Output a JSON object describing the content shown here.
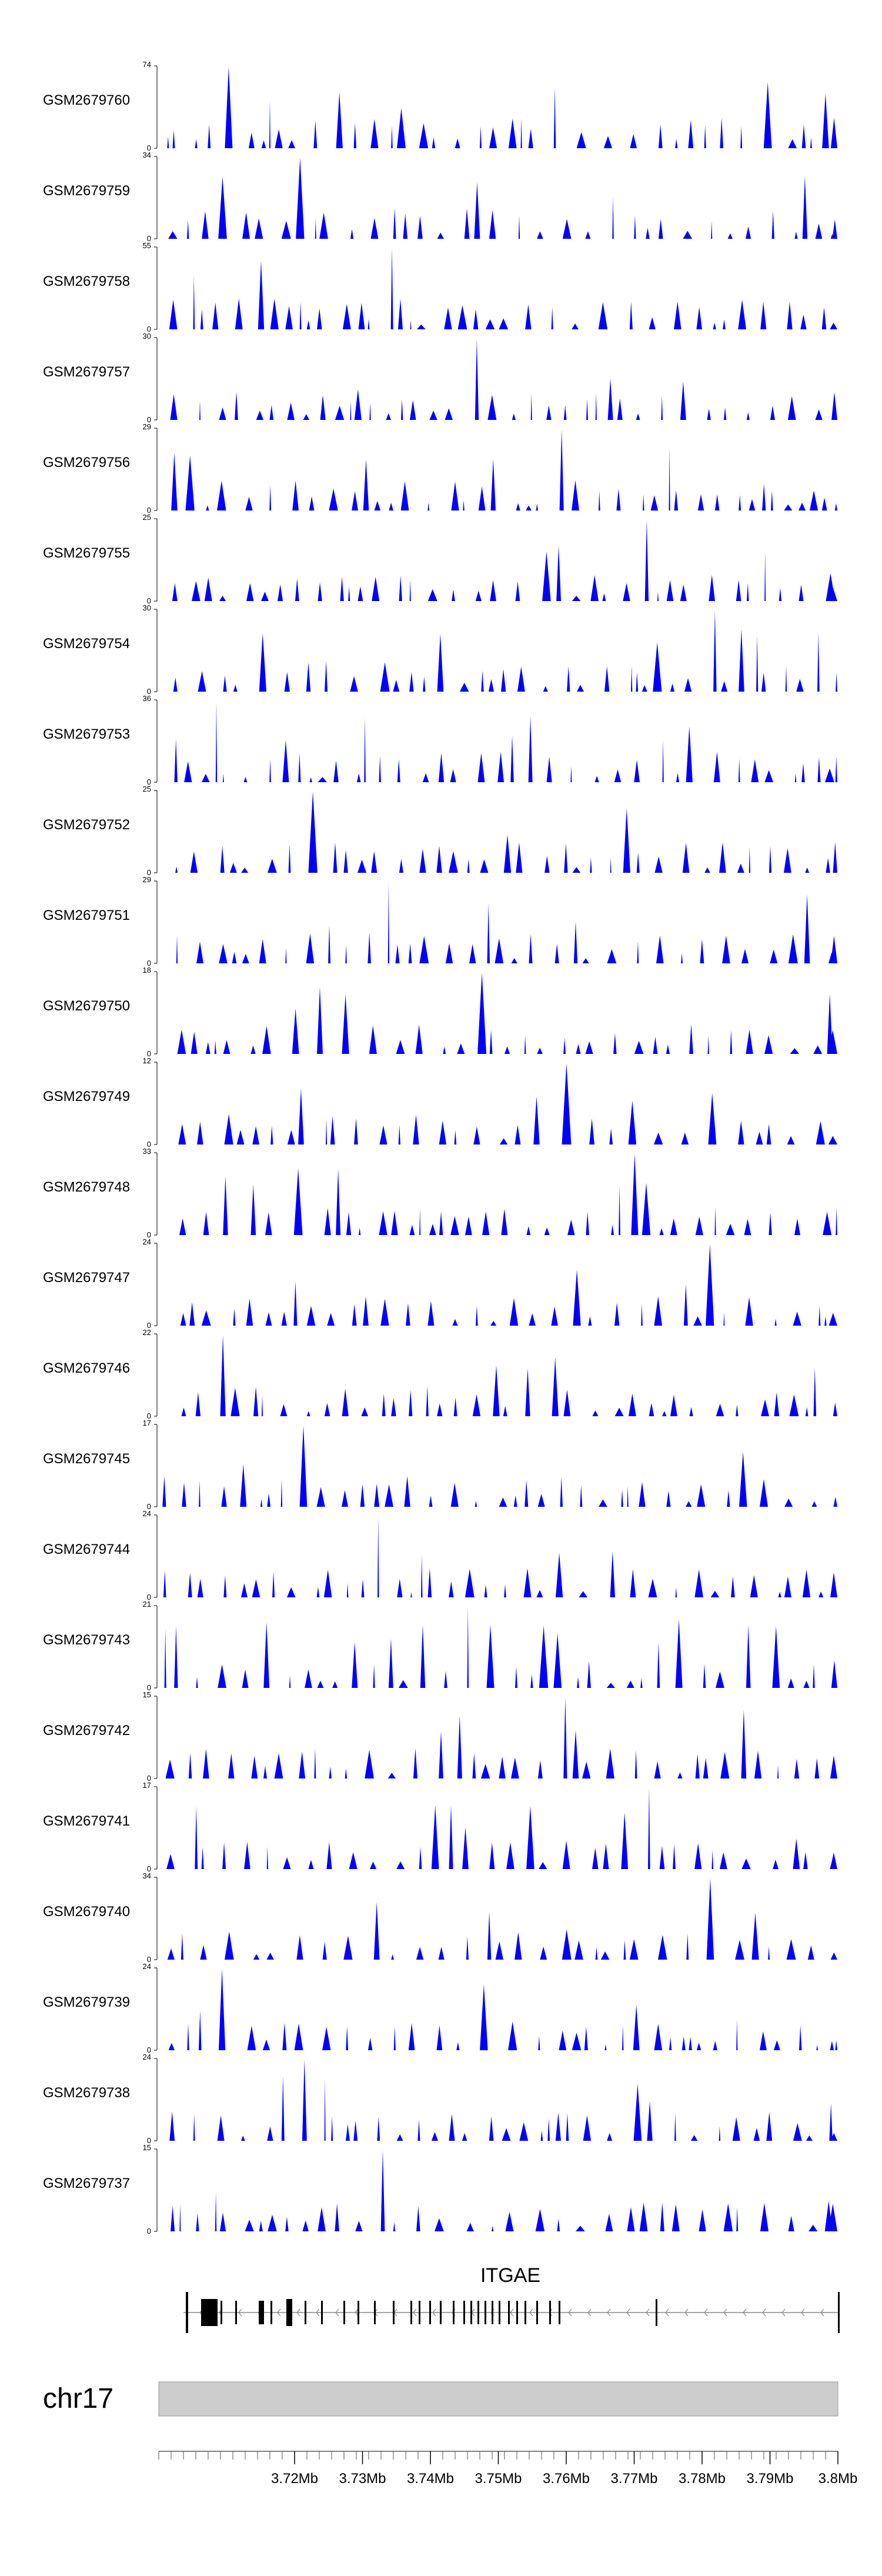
{
  "chart_data": {
    "type": "area",
    "chromosome": "chr17",
    "gene": "ITGAE",
    "x_range_mb": [
      3.7,
      3.8
    ],
    "x_tick_labels": [
      "3.72Mb",
      "3.73Mb",
      "3.74Mb",
      "3.75Mb",
      "3.76Mb",
      "3.77Mb",
      "3.78Mb",
      "3.79Mb",
      "3.8Mb"
    ],
    "x_tick_values": [
      3.72,
      3.73,
      3.74,
      3.75,
      3.76,
      3.77,
      3.78,
      3.79,
      3.8
    ],
    "fill_color": "#0000ff",
    "ideogram_color": "#cccccc",
    "series": [
      {
        "name": "GSM2679760",
        "ymax": 74
      },
      {
        "name": "GSM2679759",
        "ymax": 34
      },
      {
        "name": "GSM2679758",
        "ymax": 55
      },
      {
        "name": "GSM2679757",
        "ymax": 30
      },
      {
        "name": "GSM2679756",
        "ymax": 29
      },
      {
        "name": "GSM2679755",
        "ymax": 25
      },
      {
        "name": "GSM2679754",
        "ymax": 30
      },
      {
        "name": "GSM2679753",
        "ymax": 36
      },
      {
        "name": "GSM2679752",
        "ymax": 25
      },
      {
        "name": "GSM2679751",
        "ymax": 29
      },
      {
        "name": "GSM2679750",
        "ymax": 18
      },
      {
        "name": "GSM2679749",
        "ymax": 12
      },
      {
        "name": "GSM2679748",
        "ymax": 33
      },
      {
        "name": "GSM2679747",
        "ymax": 24
      },
      {
        "name": "GSM2679746",
        "ymax": 22
      },
      {
        "name": "GSM2679745",
        "ymax": 17
      },
      {
        "name": "GSM2679744",
        "ymax": 24
      },
      {
        "name": "GSM2679743",
        "ymax": 21
      },
      {
        "name": "GSM2679742",
        "ymax": 15
      },
      {
        "name": "GSM2679741",
        "ymax": 17
      },
      {
        "name": "GSM2679740",
        "ymax": 34
      },
      {
        "name": "GSM2679739",
        "ymax": 24
      },
      {
        "name": "GSM2679738",
        "ymax": 24
      },
      {
        "name": "GSM2679737",
        "ymax": 15
      }
    ]
  }
}
